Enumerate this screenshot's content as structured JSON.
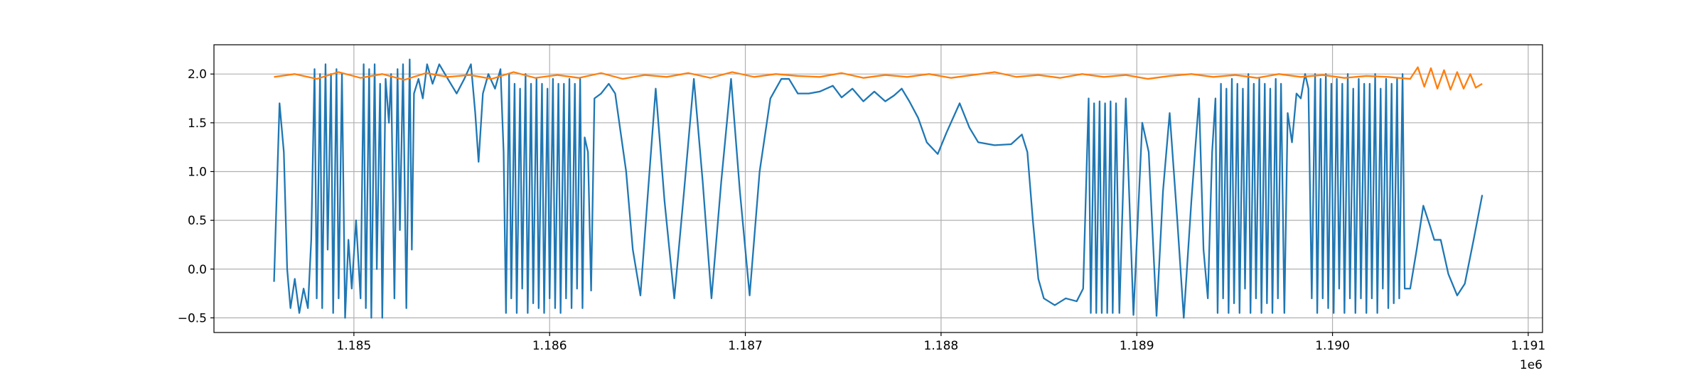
{
  "chart_data": {
    "type": "line",
    "x_offset_label": "1e6",
    "xlim": [
      1184285,
      1191073
    ],
    "xticks": [
      {
        "value": 1185000,
        "label": "1.185"
      },
      {
        "value": 1186000,
        "label": "1.186"
      },
      {
        "value": 1187000,
        "label": "1.187"
      },
      {
        "value": 1188000,
        "label": "1.188"
      },
      {
        "value": 1189000,
        "label": "1.189"
      },
      {
        "value": 1190000,
        "label": "1.190"
      },
      {
        "value": 1191000,
        "label": "1.191"
      }
    ],
    "ylim": [
      -0.65,
      2.3
    ],
    "yticks": [
      {
        "value": -0.5,
        "label": "−0.5"
      },
      {
        "value": 0,
        "label": "0.0"
      },
      0.5,
      {
        "value": 1,
        "label": "1.0"
      },
      1.5,
      {
        "value": 2,
        "label": "2.0"
      }
    ],
    "grid": true,
    "series": [
      {
        "color": "#1f77b4",
        "x": [
          1184592,
          1184620,
          1184642,
          1184659,
          1184676,
          1184698,
          1184721,
          1184743,
          1184765,
          1184782,
          1184799,
          1184810,
          1184827,
          1184838,
          1184855,
          1184866,
          1184883,
          1184894,
          1184911,
          1184922,
          1184939,
          1184955,
          1184972,
          1184989,
          1185011,
          1185034,
          1185050,
          1185061,
          1185078,
          1185089,
          1185106,
          1185117,
          1185134,
          1185145,
          1185162,
          1185179,
          1185190,
          1185207,
          1185223,
          1185235,
          1185251,
          1185268,
          1185285,
          1185296,
          1185307,
          1185330,
          1185352,
          1185374,
          1185402,
          1185436,
          1185480,
          1185525,
          1185564,
          1185598,
          1185620,
          1185637,
          1185659,
          1185687,
          1185721,
          1185749,
          1185765,
          1185777,
          1185793,
          1185804,
          1185821,
          1185832,
          1185849,
          1185860,
          1185877,
          1185888,
          1185905,
          1185916,
          1185933,
          1185944,
          1185961,
          1185972,
          1185989,
          1186000,
          1186017,
          1186028,
          1186045,
          1186056,
          1186073,
          1186084,
          1186101,
          1186112,
          1186129,
          1186140,
          1186156,
          1186168,
          1186179,
          1186196,
          1186212,
          1186229,
          1186263,
          1186302,
          1186335,
          1186363,
          1186391,
          1186425,
          1186464,
          1186503,
          1186542,
          1186587,
          1186637,
          1186687,
          1186737,
          1186782,
          1186827,
          1186877,
          1186927,
          1186972,
          1187022,
          1187073,
          1187128,
          1187184,
          1187223,
          1187268,
          1187324,
          1187380,
          1187447,
          1187492,
          1187547,
          1187603,
          1187659,
          1187715,
          1187760,
          1187799,
          1187838,
          1187883,
          1187927,
          1187983,
          1188028,
          1188095,
          1188145,
          1188190,
          1188274,
          1188358,
          1188413,
          1188441,
          1188469,
          1188497,
          1188525,
          1188581,
          1188637,
          1188693,
          1188726,
          1188754,
          1188765,
          1188782,
          1188793,
          1188810,
          1188821,
          1188838,
          1188849,
          1188866,
          1188877,
          1188894,
          1188911,
          1188944,
          1188983,
          1189028,
          1189061,
          1189101,
          1189134,
          1189168,
          1189207,
          1189240,
          1189279,
          1189318,
          1189341,
          1189363,
          1189385,
          1189402,
          1189413,
          1189430,
          1189441,
          1189458,
          1189469,
          1189486,
          1189497,
          1189514,
          1189525,
          1189542,
          1189553,
          1189570,
          1189581,
          1189598,
          1189609,
          1189626,
          1189637,
          1189654,
          1189665,
          1189682,
          1189693,
          1189710,
          1189721,
          1189737,
          1189754,
          1189771,
          1189793,
          1189816,
          1189838,
          1189860,
          1189877,
          1189894,
          1189911,
          1189922,
          1189939,
          1189950,
          1189966,
          1189978,
          1189994,
          1190006,
          1190022,
          1190034,
          1190050,
          1190061,
          1190078,
          1190089,
          1190106,
          1190117,
          1190134,
          1190145,
          1190162,
          1190173,
          1190190,
          1190201,
          1190218,
          1190229,
          1190246,
          1190257,
          1190274,
          1190285,
          1190302,
          1190313,
          1190330,
          1190341,
          1190358,
          1190369,
          1190397,
          1190430,
          1190464,
          1190497,
          1190520,
          1190553,
          1190592,
          1190637,
          1190676,
          1190721,
          1190765
        ],
        "values": [
          -0.13,
          1.7,
          1.2,
          0.0,
          -0.4,
          -0.1,
          -0.45,
          -0.2,
          -0.4,
          0.3,
          2.05,
          -0.3,
          2.0,
          -0.4,
          2.1,
          0.2,
          2.0,
          -0.45,
          2.05,
          -0.3,
          2.0,
          -0.5,
          0.3,
          -0.2,
          0.5,
          -0.3,
          2.1,
          -0.4,
          2.05,
          -0.5,
          2.1,
          0.0,
          1.9,
          -0.5,
          1.95,
          1.5,
          2.0,
          -0.3,
          2.05,
          0.4,
          2.1,
          -0.4,
          2.15,
          0.2,
          1.8,
          1.95,
          1.75,
          2.1,
          1.9,
          2.1,
          1.95,
          1.8,
          1.95,
          2.1,
          1.6,
          1.1,
          1.8,
          2.0,
          1.85,
          2.05,
          1.2,
          -0.45,
          2.0,
          -0.3,
          1.9,
          -0.45,
          1.85,
          -0.2,
          2.0,
          -0.45,
          1.9,
          -0.35,
          1.95,
          -0.4,
          1.9,
          -0.45,
          1.85,
          -0.3,
          1.95,
          -0.4,
          1.9,
          -0.45,
          1.9,
          -0.3,
          1.95,
          -0.4,
          1.9,
          -0.2,
          1.95,
          -0.4,
          1.35,
          1.2,
          -0.22,
          1.75,
          1.8,
          1.9,
          1.8,
          1.4,
          1.0,
          0.2,
          -0.27,
          0.8,
          1.85,
          0.7,
          -0.3,
          0.8,
          1.95,
          0.9,
          -0.3,
          0.9,
          1.95,
          0.8,
          -0.27,
          1.0,
          1.75,
          1.95,
          1.95,
          1.8,
          1.8,
          1.82,
          1.88,
          1.76,
          1.85,
          1.72,
          1.82,
          1.72,
          1.78,
          1.85,
          1.72,
          1.55,
          1.3,
          1.18,
          1.4,
          1.7,
          1.45,
          1.3,
          1.27,
          1.28,
          1.38,
          1.2,
          0.5,
          -0.1,
          -0.3,
          -0.37,
          -0.3,
          -0.33,
          -0.2,
          1.75,
          -0.45,
          1.7,
          -0.45,
          1.72,
          -0.45,
          1.7,
          -0.45,
          1.72,
          -0.45,
          1.7,
          -0.45,
          1.75,
          -0.47,
          1.5,
          1.2,
          -0.48,
          0.8,
          1.6,
          0.5,
          -0.5,
          0.7,
          1.75,
          0.2,
          -0.3,
          1.2,
          1.75,
          -0.45,
          1.9,
          -0.3,
          1.85,
          -0.45,
          1.95,
          -0.35,
          1.9,
          -0.45,
          1.85,
          -0.2,
          2.0,
          -0.45,
          1.9,
          -0.3,
          1.95,
          -0.45,
          1.9,
          -0.35,
          1.85,
          -0.45,
          1.95,
          -0.3,
          1.9,
          -0.45,
          1.6,
          1.3,
          1.8,
          1.75,
          2.0,
          1.85,
          -0.3,
          2.0,
          -0.45,
          1.95,
          -0.3,
          2.0,
          -0.4,
          1.9,
          -0.45,
          1.95,
          -0.2,
          1.9,
          -0.45,
          2.0,
          -0.3,
          1.85,
          -0.45,
          1.95,
          -0.3,
          1.9,
          -0.45,
          1.9,
          -0.3,
          2.0,
          -0.45,
          1.85,
          -0.2,
          1.95,
          -0.4,
          1.9,
          -0.35,
          1.95,
          -0.3,
          2.0,
          -0.2,
          -0.2,
          0.2,
          0.65,
          0.45,
          0.3,
          0.3,
          -0.05,
          -0.27,
          -0.15,
          0.3,
          0.76
        ]
      },
      {
        "color": "#ff7f0e",
        "x": [
          1184592,
          1184698,
          1184810,
          1184922,
          1185034,
          1185145,
          1185257,
          1185369,
          1185480,
          1185592,
          1185704,
          1185816,
          1185927,
          1186039,
          1186151,
          1186263,
          1186374,
          1186486,
          1186598,
          1186709,
          1186821,
          1186933,
          1187045,
          1187156,
          1187268,
          1187380,
          1187492,
          1187603,
          1187715,
          1187827,
          1187939,
          1188050,
          1188162,
          1188274,
          1188385,
          1188497,
          1188609,
          1188721,
          1188832,
          1188944,
          1189056,
          1189168,
          1189279,
          1189391,
          1189503,
          1189615,
          1189726,
          1189838,
          1189950,
          1190061,
          1190173,
          1190285,
          1190397,
          1190436,
          1190469,
          1190503,
          1190536,
          1190570,
          1190603,
          1190637,
          1190670,
          1190704,
          1190732,
          1190765
        ],
        "values": [
          1.97,
          2.0,
          1.95,
          2.02,
          1.96,
          2.0,
          1.94,
          2.01,
          1.97,
          1.99,
          1.95,
          2.02,
          1.96,
          1.99,
          1.96,
          2.01,
          1.95,
          1.99,
          1.97,
          2.01,
          1.96,
          2.02,
          1.97,
          2.0,
          1.98,
          1.97,
          2.01,
          1.96,
          1.99,
          1.97,
          2.0,
          1.96,
          1.99,
          2.02,
          1.97,
          1.99,
          1.96,
          2.0,
          1.97,
          1.99,
          1.95,
          1.98,
          2.0,
          1.97,
          1.99,
          1.96,
          2.0,
          1.97,
          1.99,
          1.96,
          1.98,
          1.97,
          1.95,
          2.07,
          1.87,
          2.06,
          1.85,
          2.04,
          1.84,
          2.02,
          1.85,
          2.0,
          1.86,
          1.9
        ]
      }
    ]
  }
}
